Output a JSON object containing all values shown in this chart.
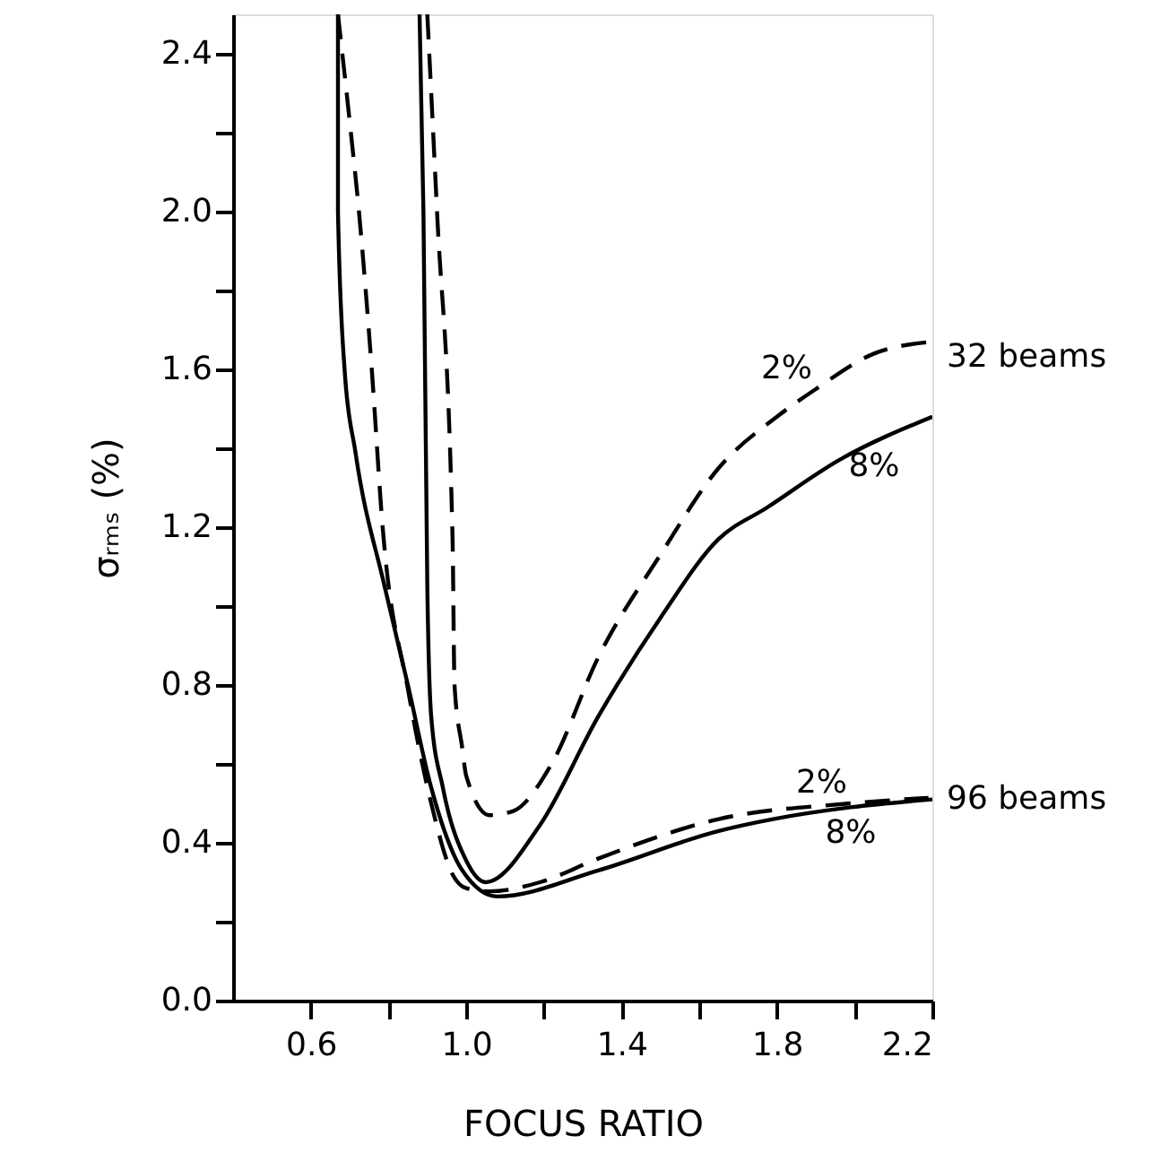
{
  "chart_data": {
    "type": "line",
    "xlabel": "FOCUS RATIO",
    "ylabel": "σᵣₘₛ (%)",
    "xlim": [
      0.4,
      2.2
    ],
    "ylim": [
      0,
      2.5
    ],
    "xticks": [
      0.6,
      {
        "value": 0.8,
        "label": null
      },
      {
        "value": 1.0,
        "label": "1.0"
      },
      {
        "value": 1.2,
        "label": null
      },
      1.4,
      {
        "value": 1.6,
        "label": null
      },
      1.8,
      {
        "value": 2.0,
        "label": null
      },
      2.2
    ],
    "yticks": [
      {
        "value": 0,
        "label": "0.0"
      },
      {
        "value": 0.2,
        "label": null
      },
      0.4,
      {
        "value": 0.6,
        "label": null
      },
      0.8,
      {
        "value": 1.0,
        "label": null
      },
      1.2,
      {
        "value": 1.4,
        "label": null
      },
      1.6,
      {
        "value": 1.8,
        "label": null
      },
      {
        "value": 2.0,
        "label": "2.0"
      },
      {
        "value": 2.2,
        "label": null
      },
      2.4
    ],
    "grid": false,
    "marker": "none",
    "series": [
      {
        "color": "#000000",
        "line_style": "dashed",
        "x": [
          0.9,
          0.925,
          0.965,
          0.97,
          0.99,
          1.0,
          1.06,
          1.12,
          1.22,
          1.34,
          1.5,
          1.65,
          1.8,
          1.9,
          2.05,
          2.2
        ],
        "values": [
          2.5,
          2.0,
          1.17,
          0.8,
          0.64,
          0.57,
          0.47,
          0.48,
          0.6,
          0.87,
          1.13,
          1.35,
          1.48,
          1.55,
          1.64,
          1.67
        ]
      },
      {
        "color": "#000000",
        "line_style": "solid",
        "x": [
          0.88,
          0.89,
          0.9,
          0.91,
          0.94,
          1.0,
          1.05,
          1.19,
          1.34,
          1.5,
          1.65,
          1.775,
          1.96,
          2.2
        ],
        "values": [
          2.5,
          2.0,
          1.05,
          0.72,
          0.54,
          0.355,
          0.3,
          0.445,
          0.72,
          0.97,
          1.17,
          1.25,
          1.37,
          1.48
        ]
      },
      {
        "color": "#000000",
        "line_style": "dashed",
        "x": [
          0.67,
          0.7,
          0.724,
          0.757,
          0.785,
          0.85,
          0.91,
          0.965,
          1.0,
          1.06,
          1.19,
          1.34,
          1.65,
          1.99,
          2.19
        ],
        "values": [
          2.5,
          2.23,
          2.0,
          1.6,
          1.2,
          0.79,
          0.5,
          0.32,
          0.285,
          0.277,
          0.3,
          0.36,
          0.46,
          0.5,
          0.514
        ]
      },
      {
        "color": "#000000",
        "line_style": "solid",
        "x": [
          0.67,
          0.67,
          0.687,
          0.715,
          0.79,
          0.85,
          0.91,
          0.99,
          1.08,
          1.34,
          1.65,
          1.79,
          1.99,
          2.2
        ],
        "values": [
          2.5,
          2.0,
          1.6,
          1.39,
          1.05,
          0.8,
          0.54,
          0.33,
          0.264,
          0.33,
          0.43,
          0.46,
          0.49,
          0.51
        ]
      }
    ],
    "annotations": [
      {
        "text": "2%",
        "x": 1.9,
        "y": 1.55
      },
      {
        "text": "8%",
        "x": 2.05,
        "y": 1.42
      },
      {
        "text": "32 beams",
        "x": 2.2,
        "y": 1.67
      },
      {
        "text": "2%",
        "x": 1.99,
        "y": 0.5
      },
      {
        "text": "8%",
        "x": 1.99,
        "y": 0.49
      },
      {
        "text": "96 beams",
        "x": 2.2,
        "y": 0.51
      }
    ]
  }
}
